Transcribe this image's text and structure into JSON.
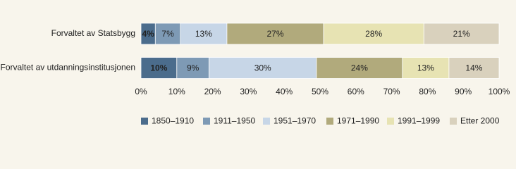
{
  "chart_data": {
    "type": "stacked-bar-horizontal",
    "categories": [
      "Forvaltet av Statsbygg",
      "Forvaltet av utdanningsinstitusjonen"
    ],
    "series": [
      {
        "name": "1850–1910",
        "color": "#4b6c8c",
        "values": [
          4,
          10
        ],
        "value_labels": [
          "4%",
          "10%"
        ]
      },
      {
        "name": "1911–1950",
        "color": "#7e9ab5",
        "values": [
          7,
          9
        ],
        "value_labels": [
          "7%",
          "9%"
        ]
      },
      {
        "name": "1951–1970",
        "color": "#c7d6e7",
        "values": [
          13,
          30
        ],
        "value_labels": [
          "13%",
          "30%"
        ]
      },
      {
        "name": "1971–1990",
        "color": "#b1aa7c",
        "values": [
          27,
          24
        ],
        "value_labels": [
          "27%",
          "24%"
        ]
      },
      {
        "name": "1991–1999",
        "color": "#e7e3b3",
        "values": [
          28,
          13
        ],
        "value_labels": [
          "28%",
          "13%"
        ]
      },
      {
        "name": "Etter 2000",
        "color": "#d9d1bd",
        "values": [
          21,
          14
        ],
        "value_labels": [
          "21%",
          "14%"
        ]
      }
    ],
    "xlim": [
      0,
      100
    ],
    "xticks": [
      {
        "value": 0,
        "label": "0%"
      },
      {
        "value": 10,
        "label": "10%"
      },
      {
        "value": 20,
        "label": "20%"
      },
      {
        "value": 30,
        "label": "30%"
      },
      {
        "value": 40,
        "label": "40%"
      },
      {
        "value": 50,
        "label": "50%"
      },
      {
        "value": 60,
        "label": "60%"
      },
      {
        "value": 70,
        "label": "70%"
      },
      {
        "value": 80,
        "label": "80%"
      },
      {
        "value": 90,
        "label": "90%"
      },
      {
        "value": 100,
        "label": "100%"
      }
    ],
    "legend": "bottom"
  }
}
